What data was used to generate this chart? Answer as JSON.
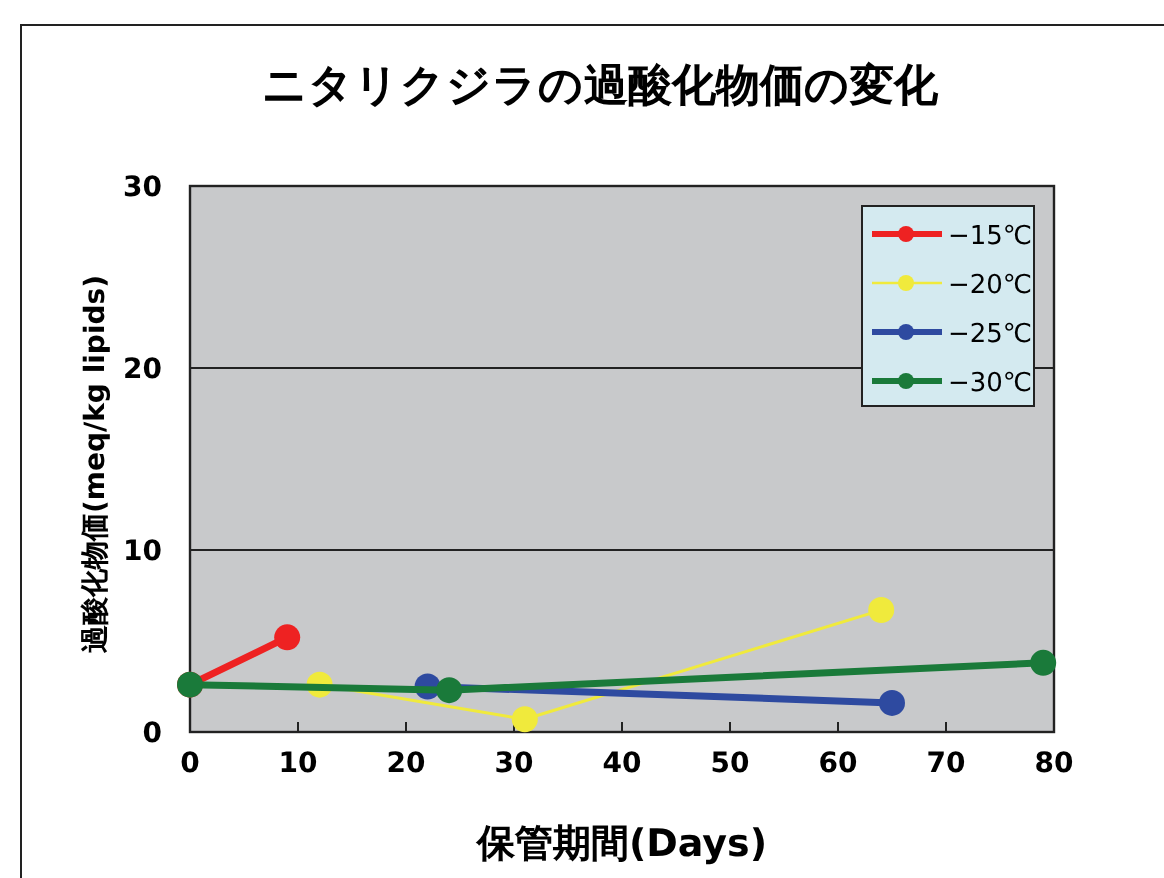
{
  "chart_data": {
    "type": "line",
    "title": "ニタリクジラの過酸化物価の変化",
    "xlabel": "保管期間(Days)",
    "ylabel": "過酸化物価(meq/kg lipids)",
    "xlim": [
      0,
      80
    ],
    "xticks": [
      0,
      10,
      20,
      30,
      40,
      50,
      60,
      70,
      80
    ],
    "ylim": [
      0,
      30
    ],
    "yticks": [
      0,
      10,
      20,
      30
    ],
    "grid": "y",
    "legend": "top right",
    "marker": "circle",
    "series": [
      {
        "name": "−15℃",
        "color": "#ee2222",
        "x": [
          0,
          9
        ],
        "values": [
          2.6,
          5.2
        ]
      },
      {
        "name": "−20℃",
        "color": "#f0ea3c",
        "x": [
          12,
          31,
          64
        ],
        "values": [
          2.6,
          0.7,
          6.7
        ]
      },
      {
        "name": "−25℃",
        "color": "#2e4aa0",
        "x": [
          22,
          65
        ],
        "values": [
          2.5,
          1.6
        ]
      },
      {
        "name": "−30℃",
        "color": "#1a7a3a",
        "x": [
          0,
          24,
          79
        ],
        "values": [
          2.6,
          2.3,
          3.8
        ]
      }
    ]
  }
}
